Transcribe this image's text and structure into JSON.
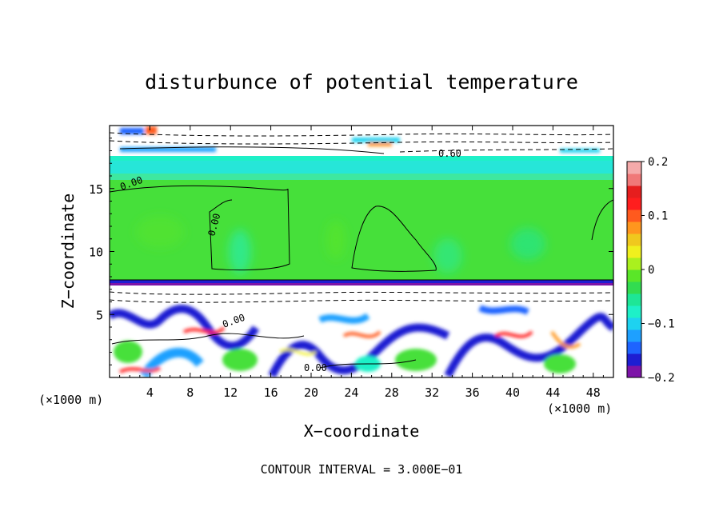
{
  "chart_data": {
    "type": "heatmap",
    "title": "disturbunce of potential temperature",
    "xlabel": "X−coordinate",
    "ylabel": "Z−coordinate",
    "x_unit": "(×1000 m)",
    "z_unit": "(×1000 m)",
    "xlim": [
      0,
      50
    ],
    "ylim": [
      0,
      20
    ],
    "x_ticks": [
      4,
      8,
      12,
      16,
      20,
      24,
      28,
      32,
      36,
      40,
      44,
      48
    ],
    "x_tick_labels": [
      "4",
      "8",
      "12",
      "16",
      "20",
      "24",
      "28",
      "32",
      "36",
      "40",
      "44",
      "48"
    ],
    "y_ticks": [
      5,
      10,
      15
    ],
    "y_tick_labels": [
      "5",
      "10",
      "15"
    ],
    "colorbar": {
      "range": [
        -0.2,
        0.2
      ],
      "ticks": [
        0.2,
        0.1,
        0,
        -0.1,
        -0.2
      ],
      "tick_labels": [
        "0.2",
        "0.1",
        "0",
        "−0.1",
        "−0.2"
      ],
      "colors": [
        "#7d14a8",
        "#1e1ed2",
        "#1e64ff",
        "#1ea0ff",
        "#1ed2f0",
        "#1ef0c8",
        "#1ee696",
        "#32dc50",
        "#5ae628",
        "#aaf01e",
        "#f0f01e",
        "#f0c81e",
        "#ff961e",
        "#ff5a1e",
        "#ff1e1e",
        "#e61e1e",
        "#f07878",
        "#f5aaaa"
      ]
    },
    "contour_labels": [
      "0.60",
      "0.00",
      "0.00",
      "0.00",
      "0.00"
    ],
    "footnote": "CONTOUR INTERVAL = 3.000E−01"
  }
}
